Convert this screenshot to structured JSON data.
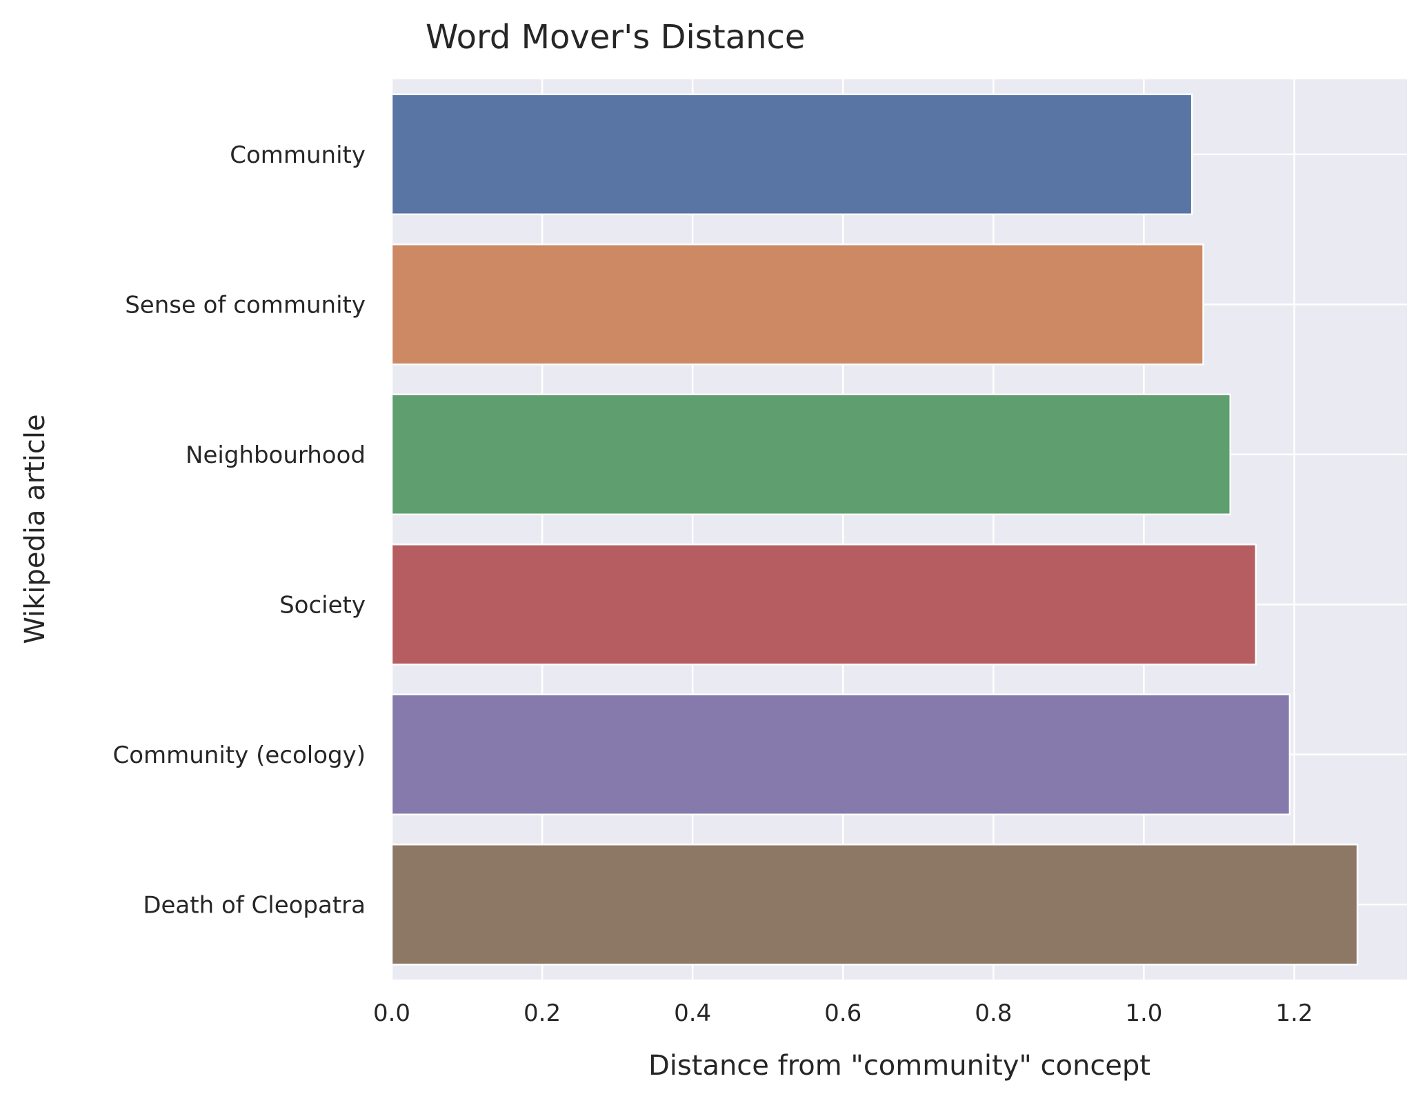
{
  "chart_data": {
    "type": "bar",
    "orientation": "horizontal",
    "title": "Word Mover's Distance",
    "xlabel": "Distance from \"community\" concept",
    "ylabel": "Wikipedia article",
    "categories": [
      "Community",
      "Sense of community",
      "Neighbourhood",
      "Society",
      "Community (ecology)",
      "Death of Cleopatra"
    ],
    "values": [
      1.064,
      1.079,
      1.115,
      1.149,
      1.194,
      1.284
    ],
    "xlim": [
      0,
      1.35
    ],
    "xticks": [
      "0.0",
      "0.2",
      "0.4",
      "0.6",
      "0.8",
      "1.0",
      "1.2"
    ],
    "grid": true,
    "colors": {
      "background": "#eaeaf2",
      "grid": "#ffffff",
      "bars": [
        "#5975a4",
        "#cc8963",
        "#5f9e6e",
        "#b55d60",
        "#857aab",
        "#8d7866"
      ]
    }
  }
}
